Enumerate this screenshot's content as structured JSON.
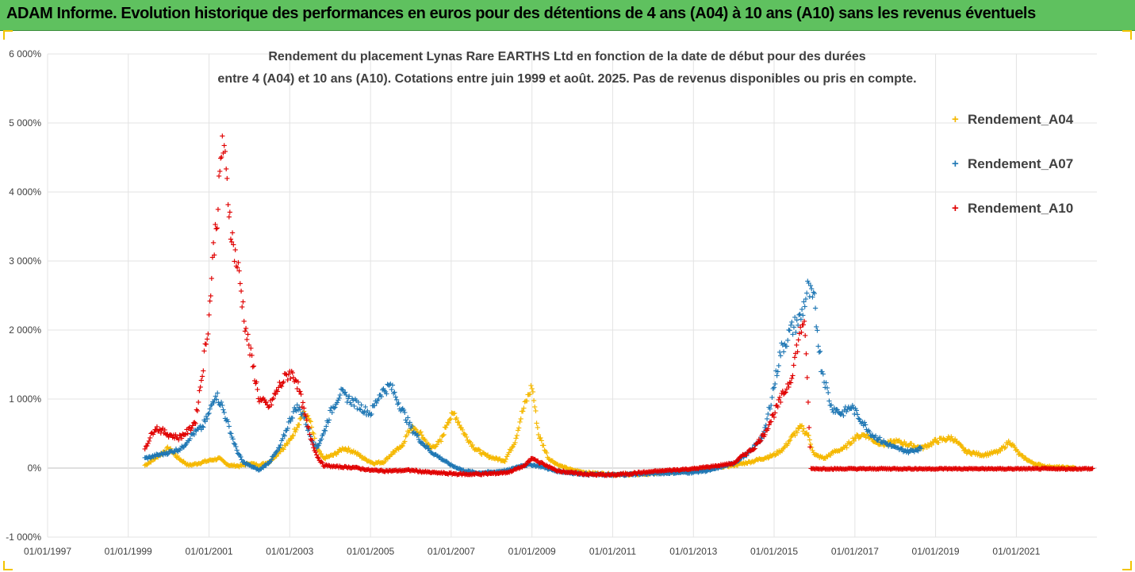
{
  "header": {
    "title": "ADAM Informe. Evolution historique des performances en euros pour des détentions de 4 ans (A04) à 10 ans (A10) sans les revenus éventuels"
  },
  "colors": {
    "header_bg": "#5fc15f",
    "frame_accent": "#f2c400",
    "series_A04": "#f5b800",
    "series_A07": "#1f77b4",
    "series_A10": "#e00000",
    "grid": "#d9d9d9"
  },
  "chart_data": {
    "type": "scatter",
    "title_line1": "Rendement du placement Lynas Rare EARTHS Ltd en fonction de la date de début pour des durées",
    "title_line2": "entre 4 (A04) et 10 ans (A10).  Cotations entre juin 1999 et août. 2025.  Pas de revenus disponibles ou pris en compte.",
    "x_ticks": [
      "01/01/1997",
      "01/01/1999",
      "01/01/2001",
      "01/01/2003",
      "01/01/2005",
      "01/01/2007",
      "01/01/2009",
      "01/01/2011",
      "01/01/2013",
      "01/01/2015",
      "01/01/2017",
      "01/01/2019",
      "01/01/2021"
    ],
    "xlim": [
      "1997-01-01",
      "2022-12-31"
    ],
    "y_ticks": [
      "-1 000%",
      "0%",
      "1 000%",
      "2 000%",
      "3 000%",
      "4 000%",
      "5 000%",
      "6 000%"
    ],
    "ylim": [
      -1000,
      6000
    ],
    "grid": "vertical and horizontal",
    "legend_position": "right",
    "marker": "+",
    "series": [
      {
        "name": "Rendement_A04",
        "points": [
          [
            "1999-06-01",
            50
          ],
          [
            "1999-09-01",
            150
          ],
          [
            "2000-01-01",
            300
          ],
          [
            "2000-04-01",
            150
          ],
          [
            "2000-07-01",
            50
          ],
          [
            "2000-10-01",
            80
          ],
          [
            "2001-01-01",
            120
          ],
          [
            "2001-04-01",
            150
          ],
          [
            "2001-07-01",
            50
          ],
          [
            "2001-10-01",
            40
          ],
          [
            "2002-01-01",
            80
          ],
          [
            "2002-04-01",
            50
          ],
          [
            "2002-07-01",
            100
          ],
          [
            "2002-10-01",
            250
          ],
          [
            "2003-01-01",
            400
          ],
          [
            "2003-03-01",
            600
          ],
          [
            "2003-05-01",
            800
          ],
          [
            "2003-07-01",
            700
          ],
          [
            "2003-09-01",
            300
          ],
          [
            "2003-11-01",
            150
          ],
          [
            "2004-02-01",
            200
          ],
          [
            "2004-05-01",
            300
          ],
          [
            "2004-08-01",
            250
          ],
          [
            "2004-11-01",
            150
          ],
          [
            "2005-02-01",
            80
          ],
          [
            "2005-05-01",
            100
          ],
          [
            "2005-08-01",
            250
          ],
          [
            "2005-10-01",
            300
          ],
          [
            "2006-01-01",
            600
          ],
          [
            "2006-04-01",
            500
          ],
          [
            "2006-07-01",
            300
          ],
          [
            "2006-10-01",
            400
          ],
          [
            "2006-12-01",
            700
          ],
          [
            "2007-02-01",
            800
          ],
          [
            "2007-05-01",
            500
          ],
          [
            "2007-08-01",
            300
          ],
          [
            "2007-11-01",
            200
          ],
          [
            "2008-02-01",
            150
          ],
          [
            "2008-05-01",
            120
          ],
          [
            "2008-08-01",
            400
          ],
          [
            "2008-10-01",
            800
          ],
          [
            "2009-01-01",
            1200
          ],
          [
            "2009-03-01",
            500
          ],
          [
            "2009-06-01",
            150
          ],
          [
            "2009-09-01",
            50
          ],
          [
            "2010-01-01",
            -20
          ],
          [
            "2010-06-01",
            -60
          ],
          [
            "2011-01-01",
            -80
          ],
          [
            "2011-06-01",
            -80
          ],
          [
            "2012-01-01",
            -70
          ],
          [
            "2012-06-01",
            -50
          ],
          [
            "2013-01-01",
            -20
          ],
          [
            "2013-06-01",
            10
          ],
          [
            "2014-01-01",
            50
          ],
          [
            "2014-06-01",
            100
          ],
          [
            "2015-01-01",
            200
          ],
          [
            "2015-04-01",
            300
          ],
          [
            "2015-07-01",
            500
          ],
          [
            "2015-09-01",
            600
          ],
          [
            "2015-11-01",
            500
          ],
          [
            "2016-01-01",
            200
          ],
          [
            "2016-04-01",
            150
          ],
          [
            "2016-07-01",
            250
          ],
          [
            "2016-10-01",
            300
          ],
          [
            "2017-01-01",
            450
          ],
          [
            "2017-04-01",
            500
          ],
          [
            "2017-07-01",
            400
          ],
          [
            "2017-10-01",
            350
          ],
          [
            "2018-01-01",
            400
          ],
          [
            "2018-05-01",
            350
          ],
          [
            "2018-09-01",
            300
          ],
          [
            "2019-01-01",
            400
          ],
          [
            "2019-06-01",
            450
          ],
          [
            "2019-10-01",
            250
          ],
          [
            "2020-03-01",
            200
          ],
          [
            "2020-08-01",
            250
          ],
          [
            "2020-11-01",
            400
          ],
          [
            "2021-02-01",
            200
          ],
          [
            "2021-06-01",
            80
          ],
          [
            "2021-10-01",
            30
          ],
          [
            "2022-03-01",
            20
          ],
          [
            "2022-07-01",
            10
          ]
        ]
      },
      {
        "name": "Rendement_A07",
        "points": [
          [
            "1999-06-01",
            150
          ],
          [
            "1999-10-01",
            200
          ],
          [
            "2000-02-01",
            250
          ],
          [
            "2000-05-01",
            300
          ],
          [
            "2000-08-01",
            500
          ],
          [
            "2000-11-01",
            600
          ],
          [
            "2001-01-01",
            800
          ],
          [
            "2001-03-01",
            1100
          ],
          [
            "2001-05-01",
            900
          ],
          [
            "2001-07-01",
            600
          ],
          [
            "2001-09-01",
            300
          ],
          [
            "2001-11-01",
            100
          ],
          [
            "2002-01-01",
            50
          ],
          [
            "2002-04-01",
            -20
          ],
          [
            "2002-07-01",
            100
          ],
          [
            "2002-10-01",
            300
          ],
          [
            "2003-01-01",
            700
          ],
          [
            "2003-03-01",
            900
          ],
          [
            "2003-05-01",
            800
          ],
          [
            "2003-07-01",
            500
          ],
          [
            "2003-09-01",
            300
          ],
          [
            "2003-11-01",
            500
          ],
          [
            "2004-01-01",
            800
          ],
          [
            "2004-04-01",
            1100
          ],
          [
            "2004-07-01",
            1000
          ],
          [
            "2004-10-01",
            900
          ],
          [
            "2005-01-01",
            800
          ],
          [
            "2005-04-01",
            1100
          ],
          [
            "2005-07-01",
            1200
          ],
          [
            "2005-10-01",
            900
          ],
          [
            "2006-01-01",
            600
          ],
          [
            "2006-04-01",
            400
          ],
          [
            "2006-07-01",
            250
          ],
          [
            "2006-10-01",
            150
          ],
          [
            "2007-01-01",
            50
          ],
          [
            "2007-05-01",
            -30
          ],
          [
            "2007-09-01",
            -60
          ],
          [
            "2008-01-01",
            -50
          ],
          [
            "2008-06-01",
            -20
          ],
          [
            "2008-10-01",
            50
          ],
          [
            "2009-01-01",
            60
          ],
          [
            "2009-04-01",
            30
          ],
          [
            "2009-08-01",
            -30
          ],
          [
            "2010-01-01",
            -60
          ],
          [
            "2010-06-01",
            -80
          ],
          [
            "2011-01-01",
            -90
          ],
          [
            "2011-06-01",
            -80
          ],
          [
            "2012-01-01",
            -70
          ],
          [
            "2012-06-01",
            -60
          ],
          [
            "2013-01-01",
            -50
          ],
          [
            "2013-06-01",
            -20
          ],
          [
            "2014-01-01",
            80
          ],
          [
            "2014-06-01",
            250
          ],
          [
            "2014-10-01",
            500
          ],
          [
            "2015-01-01",
            1200
          ],
          [
            "2015-03-01",
            1700
          ],
          [
            "2015-06-01",
            2000
          ],
          [
            "2015-09-01",
            2200
          ],
          [
            "2015-11-01",
            2600
          ],
          [
            "2016-01-01",
            2400
          ],
          [
            "2016-03-01",
            1500
          ],
          [
            "2016-06-01",
            900
          ],
          [
            "2016-09-01",
            800
          ],
          [
            "2016-12-01",
            900
          ],
          [
            "2017-03-01",
            700
          ],
          [
            "2017-06-01",
            500
          ],
          [
            "2017-09-01",
            400
          ],
          [
            "2018-01-01",
            300
          ],
          [
            "2018-05-01",
            250
          ],
          [
            "2018-09-01",
            300
          ]
        ]
      },
      {
        "name": "Rendement_A10",
        "points": [
          [
            "1999-06-01",
            300
          ],
          [
            "1999-09-01",
            600
          ],
          [
            "2000-01-01",
            500
          ],
          [
            "2000-04-01",
            450
          ],
          [
            "2000-07-01",
            550
          ],
          [
            "2000-09-01",
            700
          ],
          [
            "2000-11-01",
            1400
          ],
          [
            "2001-01-01",
            2200
          ],
          [
            "2001-02-01",
            3000
          ],
          [
            "2001-04-01",
            4000
          ],
          [
            "2001-05-01",
            4800
          ],
          [
            "2001-07-01",
            3800
          ],
          [
            "2001-08-01",
            3300
          ],
          [
            "2001-10-01",
            2800
          ],
          [
            "2001-12-01",
            2000
          ],
          [
            "2002-02-01",
            1500
          ],
          [
            "2002-04-01",
            1000
          ],
          [
            "2002-07-01",
            900
          ],
          [
            "2002-10-01",
            1200
          ],
          [
            "2003-01-01",
            1400
          ],
          [
            "2003-03-01",
            1300
          ],
          [
            "2003-05-01",
            900
          ],
          [
            "2003-07-01",
            500
          ],
          [
            "2003-09-01",
            200
          ],
          [
            "2003-11-01",
            50
          ],
          [
            "2004-03-01",
            30
          ],
          [
            "2004-08-01",
            20
          ],
          [
            "2005-01-01",
            -20
          ],
          [
            "2005-06-01",
            -30
          ],
          [
            "2006-01-01",
            -20
          ],
          [
            "2006-06-01",
            -50
          ],
          [
            "2007-01-01",
            -70
          ],
          [
            "2007-06-01",
            -80
          ],
          [
            "2008-01-01",
            -70
          ],
          [
            "2008-06-01",
            -50
          ],
          [
            "2008-11-01",
            50
          ],
          [
            "2009-01-01",
            150
          ],
          [
            "2009-04-01",
            80
          ],
          [
            "2009-08-01",
            -20
          ],
          [
            "2010-01-01",
            -60
          ],
          [
            "2010-06-01",
            -80
          ],
          [
            "2011-01-01",
            -90
          ],
          [
            "2011-06-01",
            -70
          ],
          [
            "2012-01-01",
            -40
          ],
          [
            "2012-06-01",
            -20
          ],
          [
            "2013-01-01",
            0
          ],
          [
            "2013-06-01",
            30
          ],
          [
            "2014-01-01",
            80
          ],
          [
            "2014-04-01",
            200
          ],
          [
            "2014-07-01",
            300
          ],
          [
            "2014-10-01",
            500
          ],
          [
            "2015-01-01",
            800
          ],
          [
            "2015-03-01",
            1000
          ],
          [
            "2015-06-01",
            1300
          ],
          [
            "2015-08-01",
            1800
          ],
          [
            "2015-10-01",
            2200
          ],
          [
            "2015-12-01",
            0
          ],
          [
            "2016-06-01",
            0
          ],
          [
            "2017-01-01",
            0
          ],
          [
            "2018-01-01",
            0
          ],
          [
            "2019-01-01",
            0
          ],
          [
            "2020-01-01",
            0
          ],
          [
            "2021-01-01",
            0
          ],
          [
            "2022-01-01",
            0
          ],
          [
            "2022-12-01",
            0
          ]
        ]
      }
    ]
  }
}
